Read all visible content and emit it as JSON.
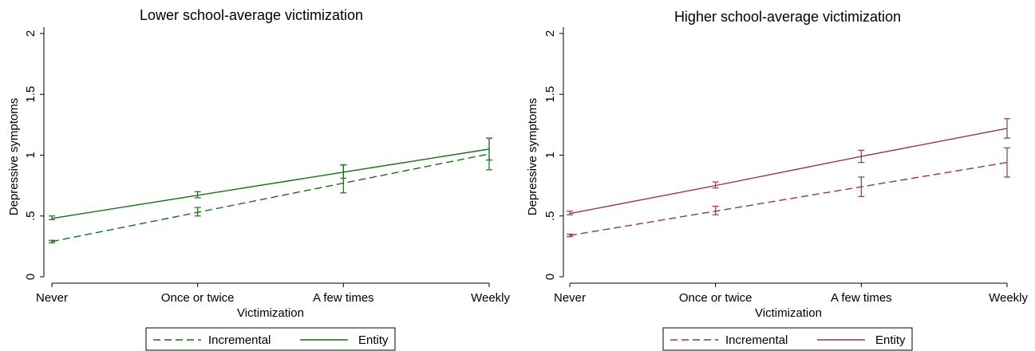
{
  "chart_data": [
    {
      "type": "line",
      "title": "Lower school-average victimization",
      "xlabel": "Victimization",
      "ylabel": "Depressive symptoms",
      "categories": [
        "Never",
        "Once or twice",
        "A few times",
        "Weekly"
      ],
      "ylim": [
        0,
        2
      ],
      "yticks": [
        "0",
        ".5",
        "1",
        "1.5",
        "2"
      ],
      "grid": false,
      "legend_position": "bottom",
      "color": "#1b6b1b",
      "series": [
        {
          "name": "Incremental",
          "style": "dashed",
          "values": [
            0.29,
            0.53,
            0.77,
            1.01
          ],
          "ci_low": [
            0.28,
            0.5,
            0.69,
            0.88
          ],
          "ci_high": [
            0.3,
            0.57,
            0.92,
            1.14
          ]
        },
        {
          "name": "Entity",
          "style": "solid",
          "values": [
            0.48,
            0.67,
            0.86,
            1.05
          ],
          "ci_low": [
            0.47,
            0.65,
            0.81,
            0.96
          ],
          "ci_high": [
            0.5,
            0.7,
            0.92,
            1.14
          ]
        }
      ]
    },
    {
      "type": "line",
      "title": "Higher school-average victimization",
      "xlabel": "Victimization",
      "ylabel": "Depressive symptoms",
      "categories": [
        "Never",
        "Once or twice",
        "A few times",
        "Weekly"
      ],
      "ylim": [
        0,
        2
      ],
      "yticks": [
        "0",
        ".5",
        "1",
        "1.5",
        "2"
      ],
      "grid": false,
      "legend_position": "bottom",
      "color": "#8e3a46",
      "series": [
        {
          "name": "Incremental",
          "style": "dashed",
          "values": [
            0.34,
            0.54,
            0.74,
            0.94
          ],
          "ci_low": [
            0.33,
            0.51,
            0.66,
            0.82
          ],
          "ci_high": [
            0.35,
            0.58,
            0.82,
            1.06
          ]
        },
        {
          "name": "Entity",
          "style": "solid",
          "values": [
            0.52,
            0.75,
            0.99,
            1.22
          ],
          "ci_low": [
            0.51,
            0.73,
            0.94,
            1.14
          ],
          "ci_high": [
            0.54,
            0.78,
            1.04,
            1.3
          ]
        }
      ]
    }
  ]
}
